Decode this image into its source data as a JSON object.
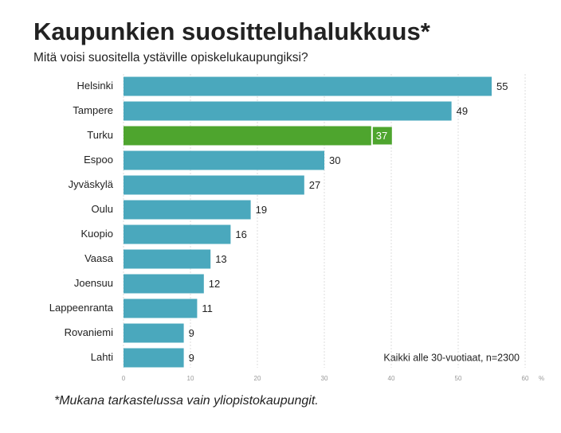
{
  "chart_data": {
    "type": "barh",
    "title": "Kaupunkien suositteluhalukkuus*",
    "subtitle": "Mitä voisi suositella ystäville opiskelukaupungiksi?",
    "annotation": "Kaikki alle 30-vuotiaat, n=2300",
    "footnote": "*Mukana tarkastelussa vain yliopistokaupungit.",
    "xlabel": "%",
    "categories": [
      "Helsinki",
      "Tampere",
      "Turku",
      "Espoo",
      "Jyväskylä",
      "Oulu",
      "Kuopio",
      "Vaasa",
      "Joensuu",
      "Lappeenranta",
      "Rovaniemi",
      "Lahti"
    ],
    "values": [
      55,
      49,
      37,
      30,
      27,
      19,
      16,
      13,
      12,
      11,
      9,
      9
    ],
    "colors": [
      "#4aa8bd",
      "#4aa8bd",
      "#4ea52e",
      "#4aa8bd",
      "#4aa8bd",
      "#4aa8bd",
      "#4aa8bd",
      "#4aa8bd",
      "#4aa8bd",
      "#4aa8bd",
      "#4aa8bd",
      "#4aa8bd"
    ],
    "highlight": "Turku",
    "xlim": [
      0,
      60
    ],
    "xticks": [
      0,
      10,
      20,
      30,
      40,
      50,
      60
    ],
    "grid": true
  }
}
